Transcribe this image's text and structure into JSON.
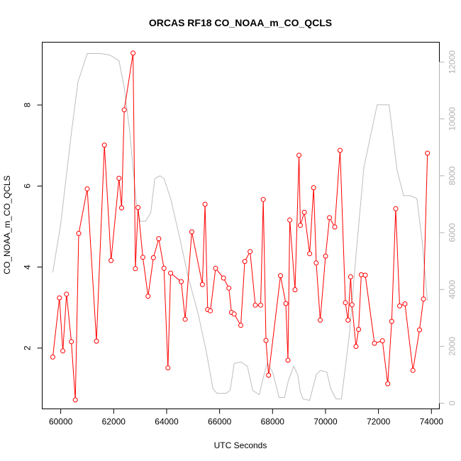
{
  "chart_data": {
    "type": "line",
    "title": "ORCAS RF18 CO_NOAA_m_CO_QCLS",
    "xlabel": "UTC Seconds",
    "ylabel": "CO_NOAA_m_CO_QCLS",
    "xlim": [
      59300,
      74300
    ],
    "ylim": [
      0.5,
      9.55
    ],
    "y2lim": [
      -200,
      12700
    ],
    "x_ticks": [
      60000,
      62000,
      64000,
      66000,
      68000,
      70000,
      72000,
      74000
    ],
    "y_ticks": [
      2,
      4,
      6,
      8
    ],
    "y2_ticks": [
      0,
      2000,
      4000,
      6000,
      8000,
      10000,
      12000
    ],
    "grid": false,
    "colors": {
      "co": "#ff0000",
      "altitude": "#bebebe",
      "axis": "#000000",
      "axis2": "#b3b3b3"
    },
    "series": [
      {
        "role": "co",
        "marker": "open-circle",
        "line_breaks": [
          [
            63900,
            64300
          ],
          [
            66000,
            66400
          ],
          [
            66900,
            67250
          ]
        ],
        "points": [
          [
            59700,
            1.78
          ],
          [
            59950,
            3.24
          ],
          [
            60080,
            1.93
          ],
          [
            60220,
            3.33
          ],
          [
            60400,
            2.16
          ],
          [
            60550,
            0.72
          ],
          [
            60680,
            4.83
          ],
          [
            61000,
            5.93
          ],
          [
            61350,
            2.17
          ],
          [
            61650,
            7.01
          ],
          [
            61900,
            4.16
          ],
          [
            62200,
            6.19
          ],
          [
            62300,
            5.46
          ],
          [
            62400,
            7.88
          ],
          [
            62730,
            9.28
          ],
          [
            62820,
            3.96
          ],
          [
            62920,
            5.47
          ],
          [
            63100,
            4.24
          ],
          [
            63300,
            3.28
          ],
          [
            63500,
            4.23
          ],
          [
            63700,
            4.7
          ],
          [
            63900,
            3.97
          ],
          [
            64050,
            1.51
          ],
          [
            64150,
            3.85
          ],
          [
            64550,
            3.64
          ],
          [
            64700,
            2.71
          ],
          [
            64950,
            4.87
          ],
          [
            65350,
            3.57
          ],
          [
            65450,
            5.55
          ],
          [
            65550,
            2.95
          ],
          [
            65650,
            2.92
          ],
          [
            65850,
            3.97
          ],
          [
            66150,
            3.73
          ],
          [
            66350,
            3.48
          ],
          [
            66450,
            2.88
          ],
          [
            66550,
            2.84
          ],
          [
            66800,
            2.56
          ],
          [
            66950,
            4.14
          ],
          [
            67150,
            4.38
          ],
          [
            67350,
            3.06
          ],
          [
            67550,
            3.06
          ],
          [
            67650,
            5.67
          ],
          [
            67750,
            2.19
          ],
          [
            67850,
            1.33
          ],
          [
            68300,
            3.79
          ],
          [
            68500,
            3.1
          ],
          [
            68580,
            1.7
          ],
          [
            68650,
            5.16
          ],
          [
            68850,
            3.44
          ],
          [
            69000,
            6.76
          ],
          [
            69050,
            5.03
          ],
          [
            69200,
            5.35
          ],
          [
            69400,
            4.33
          ],
          [
            69550,
            5.96
          ],
          [
            69650,
            4.1
          ],
          [
            69800,
            2.69
          ],
          [
            70000,
            4.27
          ],
          [
            70150,
            5.22
          ],
          [
            70350,
            4.99
          ],
          [
            70550,
            6.88
          ],
          [
            70750,
            3.12
          ],
          [
            70850,
            2.69
          ],
          [
            70950,
            3.76
          ],
          [
            71000,
            3.07
          ],
          [
            71150,
            2.04
          ],
          [
            71250,
            2.46
          ],
          [
            71350,
            3.81
          ],
          [
            71500,
            3.8
          ],
          [
            71850,
            2.12
          ],
          [
            72150,
            2.18
          ],
          [
            72350,
            1.12
          ],
          [
            72500,
            2.66
          ],
          [
            72650,
            5.44
          ],
          [
            72800,
            3.04
          ],
          [
            73000,
            3.09
          ],
          [
            73300,
            1.45
          ],
          [
            73550,
            2.45
          ],
          [
            73700,
            3.21
          ],
          [
            73850,
            6.81
          ]
        ]
      },
      {
        "role": "altitude",
        "axis": "y2",
        "points": [
          [
            59700,
            4600
          ],
          [
            60000,
            6300
          ],
          [
            60400,
            9500
          ],
          [
            60650,
            11300
          ],
          [
            61000,
            12300
          ],
          [
            61500,
            12300
          ],
          [
            61850,
            12250
          ],
          [
            62200,
            12050
          ],
          [
            62400,
            11100
          ],
          [
            62600,
            9600
          ],
          [
            62850,
            7100
          ],
          [
            63000,
            6400
          ],
          [
            63200,
            6400
          ],
          [
            63400,
            6700
          ],
          [
            63550,
            7900
          ],
          [
            63750,
            8000
          ],
          [
            63900,
            7900
          ],
          [
            64150,
            7200
          ],
          [
            64500,
            5800
          ],
          [
            64800,
            4500
          ],
          [
            65200,
            3100
          ],
          [
            65500,
            1800
          ],
          [
            65750,
            500
          ],
          [
            65900,
            350
          ],
          [
            66250,
            350
          ],
          [
            66400,
            450
          ],
          [
            66550,
            1400
          ],
          [
            66800,
            1450
          ],
          [
            67050,
            1300
          ],
          [
            67250,
            450
          ],
          [
            67500,
            300
          ],
          [
            67650,
            900
          ],
          [
            67800,
            1400
          ],
          [
            68000,
            1100
          ],
          [
            68250,
            200
          ],
          [
            68450,
            200
          ],
          [
            68600,
            800
          ],
          [
            68800,
            1300
          ],
          [
            68950,
            1000
          ],
          [
            69050,
            400
          ],
          [
            69150,
            150
          ],
          [
            69400,
            100
          ],
          [
            69650,
            1000
          ],
          [
            69800,
            1150
          ],
          [
            70050,
            1100
          ],
          [
            70200,
            500
          ],
          [
            70400,
            150
          ],
          [
            70600,
            150
          ],
          [
            70900,
            2400
          ],
          [
            71150,
            5200
          ],
          [
            71450,
            8300
          ],
          [
            71700,
            9400
          ],
          [
            71950,
            10500
          ],
          [
            72400,
            10500
          ],
          [
            72700,
            8200
          ],
          [
            72950,
            7300
          ],
          [
            73200,
            7300
          ],
          [
            73450,
            7200
          ],
          [
            73650,
            5700
          ],
          [
            73850,
            3600
          ]
        ]
      }
    ]
  }
}
